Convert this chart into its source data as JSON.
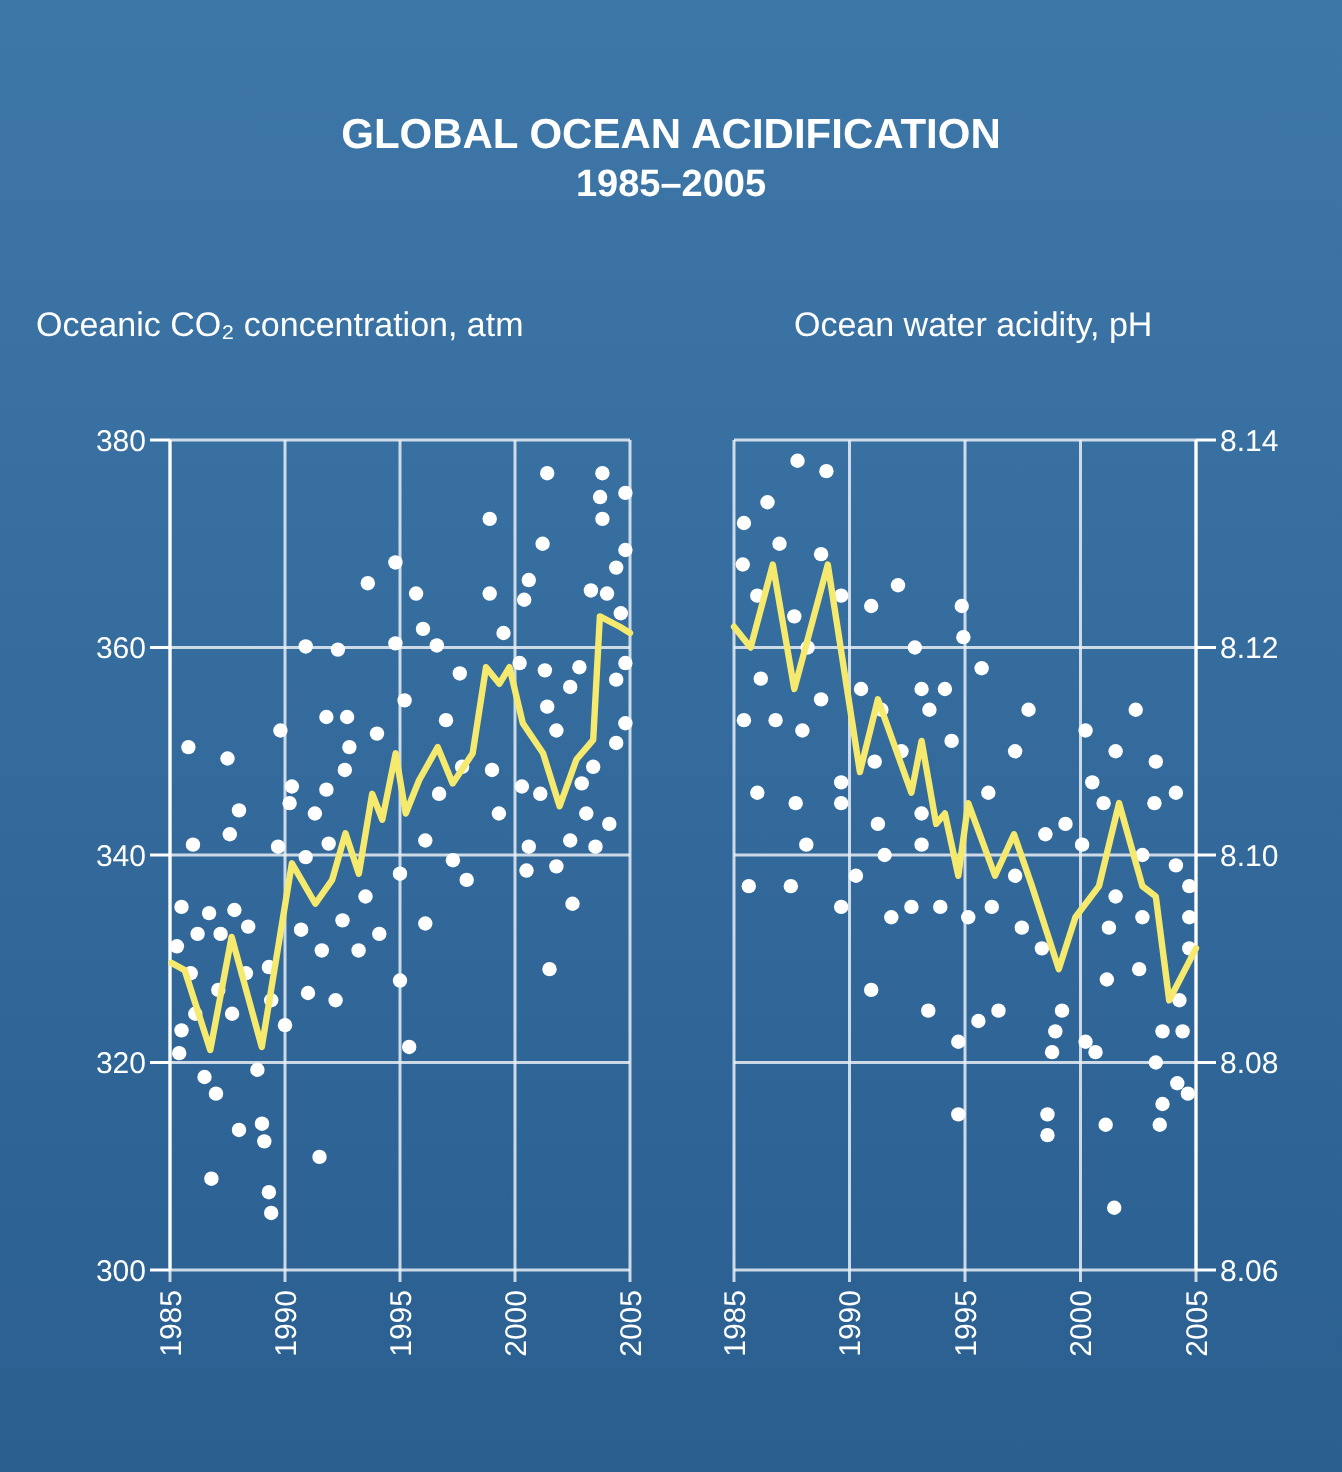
{
  "chart_data": [
    {
      "type": "scatter",
      "title": "GLOBAL OCEAN ACIDIFICATION",
      "subtitle": "1985–2005",
      "ylabel": "Oceanic CO₂ concentration, atm",
      "xlim": [
        1985,
        2005
      ],
      "xticks": [
        1985,
        1990,
        1995,
        2000,
        2005
      ],
      "ylim": [
        300,
        380
      ],
      "yticks": [
        300,
        320,
        340,
        360,
        380
      ],
      "grid": true,
      "series": [
        {
          "marker": "circle",
          "color": "#ffffff",
          "x": [
            1985.8,
            1987.5,
            1986.0,
            1988.0,
            1987.6,
            1985.5,
            1986.7,
            1987.8,
            1986.2,
            1987.2,
            1988.4,
            1985.3,
            1985.9,
            1987.1,
            1988.3,
            1989.3,
            1985.5,
            1986.1,
            1987.7,
            1989.4,
            1985.4,
            1988.8,
            1986.5,
            1987.0,
            1988.0,
            1989.0,
            1989.1,
            1986.8,
            1989.3,
            1989.4,
            1990.0,
            1989.8,
            1990.9,
            1992.3,
            1991.8,
            1992.7,
            1990.2,
            1990.3,
            1991.3,
            1991.8,
            1989.7,
            1990.9,
            1991.9,
            1990.7,
            1991.6,
            1991.0,
            1992.2,
            1992.5,
            1993.2,
            1991.5,
            1992.8,
            1992.6,
            1993.5,
            1994.1,
            1993.6,
            1994.8,
            1995.7,
            1994.8,
            1996.0,
            1996.6,
            1994.0,
            1995.2,
            1995.0,
            1996.1,
            1995.0,
            1995.4,
            1996.1,
            1996.7,
            1997.6,
            1997.0,
            1997.7,
            1997.9,
            1997.3,
            1998.9,
            1998.9,
            1999.5,
            1999.0,
            1999.3,
            2000.5,
            2000.3,
            2000.6,
            2000.2,
            2000.6,
            2000.4,
            2001.2,
            2001.4,
            2001.3,
            2001.4,
            2001.8,
            2001.8,
            2002.5,
            2001.5,
            2002.4,
            2003.1,
            2002.4,
            2002.8,
            2003.4,
            2003.5,
            2004.1,
            2003.3,
            2003.8,
            2003.7,
            2003.8,
            2004.8,
            2004.8,
            2004.4,
            2004.0,
            2004.6,
            2004.8,
            2004.4,
            2004.4,
            2004.8,
            2001.1,
            2002.9
          ],
          "values": [
            350.4,
            349.3,
            341.0,
            344.3,
            342.0,
            335.0,
            334.4,
            334.7,
            332.4,
            332.4,
            333.1,
            331.2,
            328.6,
            327.0,
            328.6,
            329.2,
            323.1,
            324.7,
            324.7,
            326.0,
            320.9,
            319.3,
            318.6,
            317.0,
            313.5,
            314.1,
            312.4,
            308.8,
            307.5,
            305.5,
            323.6,
            352.0,
            360.1,
            359.8,
            353.3,
            353.3,
            345.0,
            346.6,
            344.0,
            346.3,
            340.8,
            339.8,
            341.1,
            332.8,
            330.8,
            326.7,
            326.0,
            333.7,
            330.8,
            310.9,
            350.4,
            348.2,
            336.0,
            332.4,
            366.2,
            368.2,
            365.2,
            360.4,
            361.8,
            360.2,
            351.7,
            354.9,
            338.2,
            333.4,
            327.9,
            321.5,
            341.4,
            345.9,
            357.5,
            353.0,
            348.5,
            337.6,
            339.5,
            372.4,
            365.2,
            361.4,
            348.2,
            344.0,
            338.5,
            346.6,
            340.8,
            358.5,
            366.5,
            364.6,
            370.0,
            376.8,
            357.8,
            354.3,
            352.0,
            338.9,
            335.3,
            329.0,
            341.4,
            344.0,
            356.2,
            358.1,
            348.5,
            340.8,
            343.0,
            365.5,
            376.8,
            374.5,
            372.4,
            374.9,
            369.4,
            367.7,
            365.2,
            363.3,
            358.5,
            356.9,
            350.8,
            352.7,
            345.9,
            346.9
          ]
        },
        {
          "type": "line",
          "color": "#f5e96e",
          "x": [
            1985.06,
            1985.64,
            1986.75,
            1987.68,
            1988.99,
            1990.3,
            1991.32,
            1992.05,
            1992.63,
            1993.21,
            1993.79,
            1994.23,
            1994.81,
            1995.25,
            1995.83,
            1996.64,
            1997.29,
            1998.16,
            1998.74,
            1999.32,
            1999.76,
            2000.34,
            2001.22,
            2001.94,
            2002.67,
            2003.4,
            2003.69,
            2004.56,
            2005.0
          ],
          "values": [
            329.6,
            328.9,
            321.2,
            332.1,
            321.5,
            339.2,
            335.3,
            337.6,
            342.1,
            338.2,
            345.9,
            343.4,
            349.8,
            344.0,
            347.2,
            350.4,
            346.9,
            349.8,
            358.1,
            356.5,
            358.1,
            352.7,
            349.8,
            344.7,
            349.2,
            351.1,
            363.0,
            362.0,
            361.4
          ]
        }
      ]
    },
    {
      "type": "scatter",
      "y2label": "Ocean water acidity, pH",
      "xlim": [
        1985,
        2005
      ],
      "xticks": [
        1985,
        1990,
        1995,
        2000,
        2005
      ],
      "y2lim": [
        8.06,
        8.14
      ],
      "y2ticks": [
        {
          "value": 8.06,
          "label": "8.06"
        },
        {
          "value": 8.08,
          "label": "8.08"
        },
        {
          "value": 8.1,
          "label": "8.10"
        },
        {
          "value": 8.12,
          "label": "8.12"
        },
        {
          "value": 8.14,
          "label": "8.14"
        }
      ],
      "grid": true,
      "series": [
        {
          "marker": "circle",
          "axis": "y2",
          "color": "#ffffff",
          "x": [
            1987.75,
            1989.0,
            1985.43,
            1986.45,
            1986.97,
            1985.38,
            1988.77,
            1986.01,
            1987.61,
            1989.64,
            1990.94,
            1992.1,
            1986.16,
            1988.19,
            1988.77,
            1985.43,
            1986.8,
            1987.96,
            1990.5,
            1991.38,
            1992.83,
            1993.12,
            1994.13,
            1994.86,
            1994.93,
            1995.72,
            1993.46,
            1994.42,
            1992.25,
            1989.64,
            1989.64,
            1991.09,
            1991.23,
            1986.01,
            1987.67,
            1988.13,
            1985.64,
            1987.46,
            1990.28,
            1989.64,
            1991.52,
            1991.81,
            1992.68,
            1993.12,
            1993.93,
            1995.14,
            1993.12,
            1996.01,
            1997.17,
            1997.75,
            1996.16,
            1997.17,
            1997.46,
            1998.33,
            1998.48,
            1999.35,
            2000.07,
            2000.22,
            2000.51,
            2001.0,
            2001.52,
            2002.39,
            2003.26,
            2004.13,
            2003.2,
            2002.68,
            2004.13,
            2004.71,
            2001.52,
            2001.23,
            2002.68,
            2002.54,
            2001.14,
            1990.94,
            1993.41,
            1995.58,
            1996.45,
            1994.71,
            1999.2,
            1998.91,
            1998.77,
            2000.22,
            2000.65,
            2003.55,
            2004.42,
            2004.28,
            2003.26,
            2004.19,
            2003.55,
            2004.65,
            2003.43,
            2001.09,
            1998.57,
            1998.57,
            1994.71,
            2001.46,
            2004.71,
            2004.71
          ],
          "values": [
            8.138,
            8.137,
            8.132,
            8.134,
            8.13,
            8.128,
            8.129,
            8.125,
            8.123,
            8.125,
            8.124,
            8.126,
            8.117,
            8.12,
            8.115,
            8.113,
            8.113,
            8.112,
            8.116,
            8.114,
            8.12,
            8.116,
            8.116,
            8.124,
            8.121,
            8.118,
            8.114,
            8.111,
            8.11,
            8.107,
            8.105,
            8.109,
            8.103,
            8.106,
            8.105,
            8.101,
            8.097,
            8.097,
            8.098,
            8.095,
            8.1,
            8.094,
            8.095,
            8.101,
            8.095,
            8.094,
            8.104,
            8.106,
            8.11,
            8.114,
            8.095,
            8.098,
            8.093,
            8.091,
            8.102,
            8.103,
            8.101,
            8.112,
            8.107,
            8.105,
            8.11,
            8.114,
            8.109,
            8.106,
            8.105,
            8.1,
            8.099,
            8.097,
            8.096,
            8.093,
            8.094,
            8.089,
            8.088,
            8.087,
            8.085,
            8.084,
            8.085,
            8.082,
            8.085,
            8.083,
            8.081,
            8.082,
            8.081,
            8.083,
            8.083,
            8.086,
            8.08,
            8.078,
            8.076,
            8.077,
            8.074,
            8.074,
            8.075,
            8.073,
            8.075,
            8.066,
            8.094,
            8.091
          ]
        },
        {
          "type": "line",
          "axis": "y2",
          "color": "#f5e96e",
          "x": [
            1985.0,
            1985.72,
            1986.68,
            1987.61,
            1989.06,
            1990.45,
            1991.23,
            1992.68,
            1993.12,
            1993.75,
            1994.13,
            1994.71,
            1995.14,
            1996.3,
            1997.12,
            1997.9,
            1999.06,
            1999.78,
            2000.8,
            2001.67,
            2002.68,
            2003.26,
            2003.84,
            2005.0
          ],
          "values": [
            8.122,
            8.12,
            8.128,
            8.116,
            8.128,
            8.108,
            8.115,
            8.106,
            8.111,
            8.103,
            8.104,
            8.098,
            8.105,
            8.098,
            8.102,
            8.097,
            8.089,
            8.094,
            8.097,
            8.105,
            8.097,
            8.096,
            8.086,
            8.091
          ]
        }
      ]
    }
  ]
}
